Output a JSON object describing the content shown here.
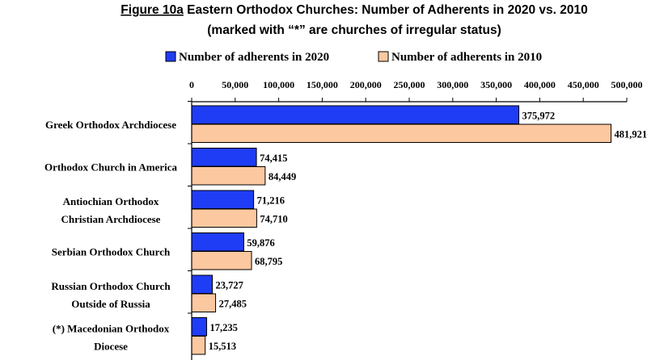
{
  "colors": {
    "series_2020": "#1f3df5",
    "series_2010": "#fcc8a0",
    "axis": "#000000"
  },
  "chart_data": {
    "type": "bar",
    "orientation": "horizontal",
    "title_label": "Figure 10a",
    "title_rest": " Eastern Orthodox Churches: Number of Adherents in 2020 vs. 2010",
    "subtitle": "(marked with “*” are churches of irregular status)",
    "xlim": [
      0,
      500000
    ],
    "ticks": [
      "0",
      "50,000",
      "100,000",
      "150,000",
      "200,000",
      "250,000",
      "300,000",
      "350,000",
      "400,000",
      "450,000",
      "500,000"
    ],
    "tick_values": [
      0,
      50000,
      100000,
      150000,
      200000,
      250000,
      300000,
      350000,
      400000,
      450000,
      500000
    ],
    "legend_position": "top",
    "categories": [
      [
        "Greek Orthodox Archdiocese"
      ],
      [
        "Orthodox Church in America"
      ],
      [
        "Antiochian Orthodox",
        "Christian Archdiocese"
      ],
      [
        "Serbian Orthodox Church"
      ],
      [
        "Russian Orthodox Church",
        "Outside of Russia"
      ],
      [
        "(*) Macedonian Orthodox",
        "Diocese"
      ]
    ],
    "series": [
      {
        "name": "Number of adherents in 2020",
        "values": [
          375972,
          74415,
          71216,
          59876,
          23727,
          17235
        ],
        "labels": [
          "375,972",
          "74,415",
          "71,216",
          "59,876",
          "23,727",
          "17,235"
        ]
      },
      {
        "name": "Number of adherents in 2010",
        "values": [
          481921,
          84449,
          74710,
          68795,
          27485,
          15513
        ],
        "labels": [
          "481,921",
          "84,449",
          "74,710",
          "68,795",
          "27,485",
          "15,513"
        ]
      }
    ]
  }
}
